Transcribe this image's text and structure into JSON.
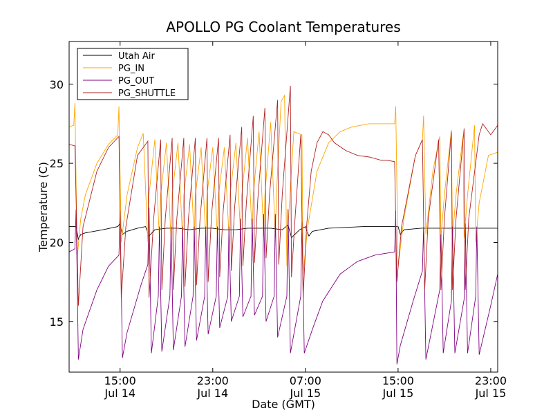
{
  "chart_data": {
    "type": "line",
    "title": "APOLLO PG Coolant Temperatures",
    "xlabel": "Date (GMT)",
    "ylabel": "Temperature (C)",
    "x_unit": "hours since Jul 14 00:00 GMT",
    "xlim": [
      10.6,
      47.6
    ],
    "ylim": [
      11.8,
      32.7
    ],
    "yticks": [
      15,
      20,
      25,
      30
    ],
    "xticks": [
      {
        "value": 15,
        "line1": "15:00",
        "line2": "Jul 14"
      },
      {
        "value": 23,
        "line1": "23:00",
        "line2": "Jul 14"
      },
      {
        "value": 31,
        "line1": "07:00",
        "line2": "Jul 15"
      },
      {
        "value": 39,
        "line1": "15:00",
        "line2": "Jul 15"
      },
      {
        "value": 47,
        "line1": "23:00",
        "line2": "Jul 15"
      }
    ],
    "legend_position": "top-left",
    "series": [
      {
        "name": "Utah Air",
        "color": "#000000",
        "x": [
          10.6,
          11.2,
          11.4,
          11.6,
          12.0,
          13.5,
          14.8,
          15.0,
          15.2,
          15.6,
          16.5,
          17.2,
          17.5,
          18.0,
          19.0,
          20.0,
          21.0,
          22.0,
          23.0,
          24.0,
          25.0,
          26.0,
          27.0,
          28.0,
          29.0,
          29.5,
          29.8,
          30.5,
          31.0,
          31.3,
          31.6,
          33.0,
          36.0,
          38.5,
          39.0,
          39.2,
          39.5,
          41.0,
          43.0,
          45.0,
          47.0,
          47.6
        ],
        "y": [
          21.0,
          21.0,
          20.2,
          20.5,
          20.6,
          20.8,
          21.0,
          21.2,
          20.5,
          20.7,
          20.9,
          21.0,
          20.4,
          20.8,
          20.9,
          20.9,
          20.8,
          20.9,
          20.9,
          20.8,
          20.8,
          20.9,
          20.9,
          20.9,
          20.8,
          21.1,
          20.3,
          20.8,
          21.0,
          20.4,
          20.7,
          20.9,
          21.0,
          21.0,
          21.0,
          20.5,
          20.8,
          20.9,
          20.9,
          20.9,
          20.9,
          20.9
        ]
      },
      {
        "name": "PG_IN",
        "color": "#ffa500",
        "x": [
          10.6,
          11.0,
          11.1,
          11.3,
          11.6,
          12.0,
          13.0,
          14.0,
          14.8,
          14.9,
          15.1,
          15.6,
          16.5,
          17.0,
          17.4,
          17.5,
          18.0,
          18.4,
          18.5,
          19.0,
          19.4,
          19.5,
          20.0,
          20.4,
          20.5,
          21.0,
          21.4,
          21.5,
          22.0,
          22.4,
          22.5,
          23.0,
          23.4,
          23.5,
          24.0,
          24.4,
          24.5,
          25.0,
          25.4,
          25.5,
          26.0,
          26.4,
          26.5,
          27.0,
          27.4,
          27.5,
          28.0,
          28.4,
          28.5,
          28.9,
          29.2,
          29.4,
          29.5,
          30.0,
          30.7,
          30.8,
          31.2,
          32.0,
          33.0,
          34.0,
          35.0,
          36.5,
          38.7,
          38.8,
          39.0,
          39.5,
          40.5,
          41.1,
          41.2,
          41.4,
          42.0,
          42.6,
          42.7,
          43.0,
          43.6,
          43.7,
          44.0,
          44.6,
          44.7,
          45.0,
          45.6,
          45.7,
          46.0,
          46.8,
          47.6
        ],
        "y": [
          27.3,
          27.4,
          28.8,
          19.0,
          21.5,
          23.0,
          25.0,
          26.2,
          26.8,
          28.6,
          20.0,
          23.0,
          26.0,
          26.9,
          20.0,
          23.0,
          26.5,
          20.1,
          23.0,
          26.3,
          20.1,
          23.0,
          26.3,
          20.2,
          23.0,
          26.2,
          20.2,
          23.0,
          26.0,
          20.3,
          23.0,
          26.0,
          20.3,
          23.0,
          26.0,
          20.5,
          23.0,
          26.3,
          20.5,
          23.0,
          26.6,
          20.5,
          23.0,
          27.0,
          20.4,
          23.0,
          27.6,
          20.3,
          23.0,
          28.9,
          29.3,
          18.5,
          21.0,
          27.0,
          26.8,
          18.0,
          21.0,
          24.5,
          26.3,
          27.0,
          27.3,
          27.5,
          27.5,
          28.6,
          18.5,
          21.5,
          25.5,
          26.5,
          28.0,
          20.5,
          24.5,
          26.7,
          20.3,
          23.0,
          27.1,
          20.3,
          23.0,
          26.7,
          20.3,
          23.0,
          27.4,
          20.0,
          22.5,
          25.5,
          25.7
        ]
      },
      {
        "name": "PG_OUT",
        "color": "#800080",
        "x": [
          10.6,
          11.1,
          11.2,
          11.4,
          11.8,
          13.0,
          14.0,
          14.9,
          15.0,
          15.2,
          15.6,
          16.8,
          17.4,
          17.5,
          17.7,
          18.3,
          18.4,
          18.6,
          19.3,
          19.4,
          19.6,
          20.3,
          20.4,
          20.6,
          21.3,
          21.4,
          21.6,
          22.3,
          22.4,
          22.6,
          23.3,
          23.4,
          23.6,
          24.3,
          24.4,
          24.6,
          25.3,
          25.4,
          25.6,
          26.3,
          26.4,
          26.6,
          27.3,
          27.4,
          27.6,
          28.3,
          28.4,
          28.6,
          29.4,
          29.5,
          29.7,
          30.6,
          30.7,
          30.9,
          31.6,
          32.5,
          34.0,
          35.5,
          37.0,
          38.7,
          38.8,
          38.9,
          39.2,
          40.3,
          41.1,
          41.2,
          41.4,
          42.6,
          42.7,
          42.9,
          43.6,
          43.7,
          43.9,
          44.7,
          44.8,
          45.0,
          45.7,
          45.8,
          46.0,
          47.0,
          47.6
        ],
        "y": [
          19.4,
          19.6,
          22.1,
          12.6,
          14.5,
          17.0,
          18.5,
          19.2,
          22.0,
          12.7,
          14.3,
          17.3,
          18.6,
          22.2,
          13.0,
          16.6,
          21.0,
          13.1,
          16.6,
          21.0,
          13.2,
          16.6,
          21.0,
          13.4,
          16.6,
          21.0,
          13.8,
          16.6,
          21.0,
          14.2,
          16.6,
          21.0,
          14.6,
          16.6,
          21.0,
          15.0,
          16.6,
          21.5,
          15.3,
          16.6,
          21.5,
          15.4,
          16.6,
          21.8,
          15.0,
          16.6,
          21.8,
          14.0,
          16.6,
          22.1,
          13.0,
          16.6,
          21.3,
          13.0,
          14.5,
          16.3,
          18.0,
          18.8,
          19.2,
          19.4,
          22.0,
          12.3,
          13.5,
          16.3,
          18.2,
          21.0,
          12.6,
          17.0,
          20.5,
          13.0,
          16.3,
          21.0,
          13.0,
          16.4,
          21.2,
          13.0,
          16.6,
          21.0,
          12.9,
          16.0,
          18.0
        ]
      },
      {
        "name": "PG_SHUTTLE",
        "color": "#b22222",
        "x": [
          10.6,
          11.1,
          11.4,
          11.8,
          13.0,
          14.0,
          14.9,
          15.1,
          15.5,
          16.5,
          17.4,
          17.5,
          17.9,
          18.5,
          18.6,
          18.9,
          19.5,
          19.6,
          19.9,
          20.5,
          20.6,
          20.9,
          21.5,
          21.6,
          21.9,
          22.5,
          22.6,
          22.9,
          23.5,
          23.6,
          23.9,
          24.5,
          24.6,
          24.9,
          25.5,
          25.6,
          25.9,
          26.5,
          26.6,
          26.9,
          27.5,
          27.6,
          27.9,
          28.6,
          28.7,
          29.0,
          29.7,
          29.8,
          30.1,
          30.6,
          30.8,
          31.1,
          31.5,
          32.0,
          32.5,
          33.0,
          33.5,
          34.5,
          35.5,
          36.5,
          37.0,
          37.5,
          38.0,
          38.7,
          38.9,
          39.3,
          40.5,
          41.1,
          41.3,
          41.6,
          42.5,
          42.7,
          43.0,
          43.6,
          43.7,
          44.0,
          44.7,
          44.8,
          45.1,
          46.0,
          46.3,
          47.0,
          47.6
        ],
        "y": [
          26.2,
          26.1,
          16.0,
          21.0,
          24.5,
          26.0,
          26.7,
          16.5,
          21.0,
          25.5,
          26.4,
          16.5,
          21.5,
          26.5,
          17.0,
          21.5,
          26.6,
          17.0,
          21.5,
          26.6,
          17.2,
          21.5,
          26.6,
          17.3,
          21.5,
          26.6,
          17.5,
          21.8,
          26.6,
          17.8,
          22.0,
          26.8,
          18.2,
          22.3,
          27.3,
          18.5,
          22.5,
          28.0,
          18.7,
          22.8,
          28.5,
          19.0,
          23.0,
          29.0,
          18.6,
          23.0,
          29.9,
          17.8,
          21.5,
          26.8,
          16.5,
          21.0,
          24.5,
          26.3,
          27.0,
          26.8,
          26.3,
          25.8,
          25.5,
          25.4,
          25.3,
          25.2,
          25.2,
          25.1,
          17.5,
          21.0,
          25.5,
          26.5,
          17.0,
          21.5,
          26.5,
          17.0,
          21.5,
          27.0,
          17.0,
          21.5,
          27.2,
          17.0,
          21.5,
          26.8,
          27.5,
          26.8,
          27.4
        ]
      }
    ]
  }
}
